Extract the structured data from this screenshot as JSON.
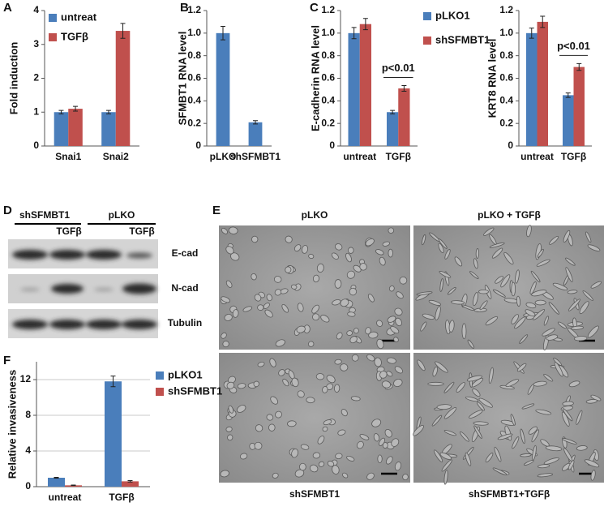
{
  "chart_data": [
    {
      "type": "bar",
      "panel": "A",
      "ylabel": "Fold induction",
      "categories": [
        "Snai1",
        "Snai2"
      ],
      "series": [
        {
          "name": "untreat",
          "color": "#4a7ebb",
          "values": [
            1.0,
            1.0
          ],
          "errors": [
            0.05,
            0.05
          ]
        },
        {
          "name": "TGFβ",
          "color": "#c0504d",
          "values": [
            1.1,
            3.4
          ],
          "errors": [
            0.07,
            0.22
          ]
        }
      ],
      "ylim": [
        0,
        4
      ],
      "yticks": [
        0,
        1,
        2,
        3,
        4
      ],
      "grid": false,
      "legend": "top-left"
    },
    {
      "type": "bar",
      "panel": "B",
      "ylabel": "SFMBT1 RNA level",
      "categories": [
        "pLKO",
        "shSFMBT1"
      ],
      "series": [
        {
          "color": "#4a7ebb",
          "values": [
            1.0,
            0.21
          ],
          "errors": [
            0.06,
            0.015
          ]
        }
      ],
      "ylim": [
        0,
        1.2
      ],
      "yticks": [
        0,
        0.2,
        0.4,
        0.6,
        0.8,
        {
          "value": 1,
          "label": "1.0"
        },
        1.2
      ],
      "grid": false
    },
    {
      "type": "bar",
      "panel": "C",
      "ylabel": "E-cadherin RNA level",
      "categories": [
        "untreat",
        "TGFβ"
      ],
      "series": [
        {
          "name": "pLKO1",
          "color": "#4a7ebb",
          "values": [
            1.0,
            0.3
          ],
          "errors": [
            0.05,
            0.015
          ]
        },
        {
          "name": "shSFMBT1",
          "color": "#c0504d",
          "values": [
            1.08,
            0.51
          ],
          "errors": [
            0.05,
            0.025
          ]
        }
      ],
      "ylim": [
        0,
        1.2
      ],
      "yticks": [
        0,
        0.2,
        0.4,
        0.6,
        0.8,
        {
          "value": 1,
          "label": "1.0"
        },
        1.2
      ],
      "grid": false,
      "legend": "outside-right",
      "annotation": "p<0.01"
    },
    {
      "type": "bar",
      "ylabel": "KRT8 RNA level",
      "categories": [
        "untreat",
        "TGFβ"
      ],
      "series": [
        {
          "color": "#4a7ebb",
          "values": [
            1.0,
            0.45
          ],
          "errors": [
            0.045,
            0.02
          ]
        },
        {
          "color": "#c0504d",
          "values": [
            1.1,
            0.7
          ],
          "errors": [
            0.05,
            0.03
          ]
        }
      ],
      "ylim": [
        0,
        1.2
      ],
      "yticks": [
        0,
        0.2,
        0.4,
        0.6,
        0.8,
        {
          "value": 1,
          "label": "1.0"
        },
        1.2
      ],
      "grid": false,
      "annotation": "p<0.01"
    },
    {
      "type": "bar",
      "panel": "F",
      "ylabel": "Relative invasiveness",
      "categories": [
        "untreat",
        "TGFβ"
      ],
      "series": [
        {
          "name": "pLKO1",
          "color": "#4a7ebb",
          "values": [
            1.0,
            11.8
          ],
          "errors": [
            0.05,
            0.6
          ]
        },
        {
          "name": "shSFMBT1",
          "color": "#c0504d",
          "values": [
            0.15,
            0.6
          ],
          "errors": [
            0.03,
            0.08
          ]
        }
      ],
      "ylim": [
        0,
        14
      ],
      "yticks": [
        0,
        4,
        8,
        12
      ],
      "grid": true,
      "legend": "outside-right"
    }
  ],
  "blot": {
    "panel": "D",
    "groups": [
      "shSFMBT1",
      "pLKO"
    ],
    "treatment": [
      "TGFβ",
      "TGFβ"
    ],
    "rows": [
      "E-cad",
      "N-cad",
      "Tubulin"
    ]
  },
  "micrographs": {
    "panel": "E",
    "captions": [
      "pLKO",
      "pLKO + TGFβ",
      "shSFMBT1",
      "shSFMBT1+TGFβ"
    ]
  }
}
